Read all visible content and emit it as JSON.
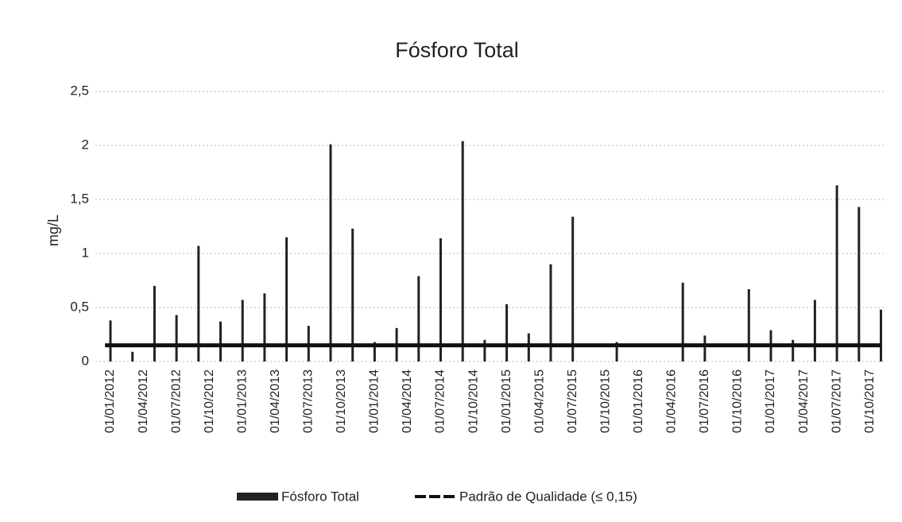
{
  "chart_data": {
    "type": "bar",
    "title": "Fósforo Total",
    "y_label": "mg/L",
    "categories": [
      "01/01/2012",
      null,
      null,
      "01/04/2012",
      null,
      null,
      "01/07/2012",
      null,
      null,
      "01/10/2012",
      null,
      null,
      "01/01/2013",
      null,
      null,
      "01/04/2013",
      null,
      null,
      "01/07/2013",
      null,
      null,
      "01/10/2013",
      null,
      null,
      "01/01/2014",
      null,
      null,
      "01/04/2014",
      null,
      null,
      "01/07/2014",
      null,
      null,
      "01/10/2014",
      null,
      null,
      "01/01/2015",
      null,
      null,
      "01/04/2015",
      null,
      null,
      "01/07/2015",
      null,
      null,
      "01/10/2015",
      null,
      null,
      "01/01/2016",
      null,
      null,
      "01/04/2016",
      null,
      null,
      "01/07/2016",
      null,
      null,
      "01/10/2016",
      null,
      null,
      "01/01/2017",
      null,
      null,
      "01/04/2017",
      null,
      null,
      "01/07/2017",
      null,
      null,
      "01/10/2017",
      null
    ],
    "series": [
      {
        "name": "Fósforo Total",
        "type": "bar",
        "color": "#222222",
        "values": [
          0.38,
          null,
          0.09,
          null,
          0.7,
          null,
          0.43,
          null,
          1.07,
          null,
          0.37,
          null,
          0.57,
          null,
          0.63,
          null,
          1.15,
          null,
          0.33,
          null,
          2.01,
          null,
          1.23,
          null,
          0.18,
          null,
          0.31,
          null,
          0.79,
          null,
          1.14,
          null,
          2.04,
          null,
          0.2,
          null,
          0.53,
          null,
          0.26,
          null,
          0.9,
          null,
          1.34,
          null,
          null,
          null,
          0.18,
          null,
          null,
          null,
          null,
          null,
          0.73,
          null,
          0.24,
          null,
          null,
          null,
          0.67,
          null,
          0.29,
          null,
          0.2,
          null,
          0.57,
          null,
          1.63,
          null,
          1.43,
          null,
          0.48
        ]
      },
      {
        "name": "Padrão de Qualidade (≤ 0,15)",
        "type": "line",
        "color": "#111111",
        "values": [
          0.15,
          0.15,
          0.15,
          0.15,
          0.15,
          0.15,
          0.15,
          0.15,
          0.15,
          0.15,
          0.15,
          0.15,
          0.15,
          0.15,
          0.15,
          0.15,
          0.15,
          0.15,
          0.15,
          0.15,
          0.15,
          0.15,
          0.15,
          0.15,
          0.15,
          0.15,
          0.15,
          0.15,
          0.15,
          0.15,
          0.15,
          0.15,
          0.15,
          0.15,
          0.15,
          0.15,
          0.15,
          0.15,
          0.15,
          0.15,
          0.15,
          0.15,
          0.15,
          0.15,
          0.15,
          0.15,
          0.15,
          0.15,
          0.15,
          0.15,
          0.15,
          0.15,
          0.15,
          0.15,
          0.15,
          0.15,
          0.15,
          0.15,
          0.15,
          0.15,
          0.15,
          0.15,
          0.15,
          0.15,
          0.15,
          0.15,
          0.15,
          0.15,
          0.15,
          0.15,
          0.15
        ]
      }
    ],
    "ylim": [
      0,
      2.5
    ],
    "yticks": [
      0,
      {
        "value": 0.5,
        "label": "0,5"
      },
      1,
      {
        "value": 1.5,
        "label": "1,5"
      },
      2,
      {
        "value": 2.5,
        "label": "2,5"
      }
    ],
    "grid": true
  }
}
